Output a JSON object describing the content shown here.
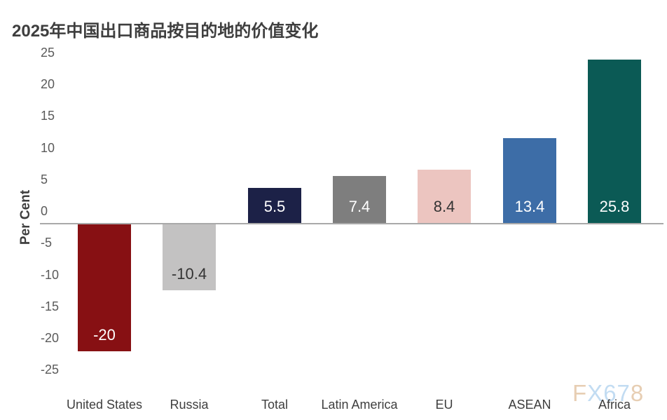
{
  "title": "2025年中国出口商品按目的地的价值变化",
  "watermark": {
    "text": "FX678",
    "letters": [
      {
        "ch": "F",
        "color": "#e7ceb3"
      },
      {
        "ch": "X",
        "color": "#c2dcf2"
      },
      {
        "ch": "6",
        "color": "#c2dcf2"
      },
      {
        "ch": "7",
        "color": "#c2dcf2"
      },
      {
        "ch": "8",
        "color": "#e7ceb3"
      }
    ]
  },
  "chart_data": {
    "type": "bar",
    "title": "2025年中国出口商品按目的地的价值变化",
    "ylabel": "Per Cent",
    "xlabel": "",
    "ylim": [
      -25,
      25
    ],
    "ytick_step": 5,
    "yticks": [
      25,
      20,
      15,
      10,
      5,
      0,
      -5,
      -10,
      -15,
      -20,
      -25
    ],
    "grid": false,
    "legend": false,
    "categories": [
      "United States",
      "Russia",
      "Total",
      "Latin America",
      "EU",
      "ASEAN",
      "Africa"
    ],
    "values": [
      -20,
      -10.4,
      5.5,
      7.4,
      8.4,
      13.4,
      25.8
    ],
    "value_labels": [
      "-20",
      "-10.4",
      "5.5",
      "7.4",
      "8.4",
      "13.4",
      "25.8"
    ],
    "bar_colors": [
      "#871013",
      "#c3c2c2",
      "#1c2147",
      "#7e7e7e",
      "#ecc5c0",
      "#3d6da7",
      "#0b5a55"
    ],
    "value_label_colors": [
      "#ffffff",
      "#333333",
      "#ffffff",
      "#ffffff",
      "#333333",
      "#ffffff",
      "#ffffff"
    ],
    "axis_line_color": "#a9a9a9",
    "ytick_color": "#5a5a5a",
    "xtick_color": "#3e3e3e"
  }
}
